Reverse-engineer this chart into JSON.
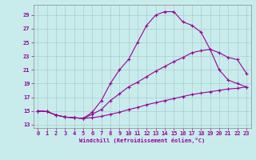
{
  "xlabel": "Windchill (Refroidissement éolien,°C)",
  "background_color": "#c8ecec",
  "line_color": "#990099",
  "xlim": [
    0,
    23
  ],
  "ylim": [
    13,
    30
  ],
  "yticks": [
    13,
    15,
    17,
    19,
    21,
    23,
    25,
    27,
    29
  ],
  "xticks": [
    0,
    1,
    2,
    3,
    4,
    5,
    6,
    7,
    8,
    9,
    10,
    11,
    12,
    13,
    14,
    15,
    16,
    17,
    18,
    19,
    20,
    21,
    22,
    23
  ],
  "curve_top_x": [
    0,
    1,
    2,
    3,
    4,
    5,
    6,
    7,
    8,
    9,
    10,
    11,
    12,
    13,
    14,
    15,
    16,
    17,
    18,
    19,
    20,
    21,
    22,
    23
  ],
  "curve_top_y": [
    15.0,
    14.9,
    14.4,
    14.1,
    14.0,
    13.9,
    14.8,
    16.5,
    19.0,
    21.0,
    22.5,
    25.0,
    27.5,
    29.0,
    29.5,
    29.5,
    28.0,
    27.5,
    26.5,
    24.0,
    21.0,
    19.5,
    19.0,
    18.5
  ],
  "curve_mid_x": [
    0,
    1,
    2,
    3,
    4,
    5,
    6,
    7,
    8,
    9,
    10,
    11,
    12,
    13,
    14,
    15,
    16,
    17,
    18,
    19,
    20,
    21,
    22,
    23
  ],
  "curve_mid_y": [
    15.0,
    14.9,
    14.4,
    14.1,
    14.0,
    13.9,
    14.5,
    15.2,
    16.5,
    17.5,
    18.5,
    19.2,
    20.0,
    20.8,
    21.5,
    22.2,
    22.8,
    23.5,
    23.8,
    24.0,
    23.5,
    22.8,
    22.5,
    20.5
  ],
  "curve_bot_x": [
    0,
    1,
    2,
    3,
    4,
    5,
    6,
    7,
    8,
    9,
    10,
    11,
    12,
    13,
    14,
    15,
    16,
    17,
    18,
    19,
    20,
    21,
    22,
    23
  ],
  "curve_bot_y": [
    15.0,
    14.9,
    14.4,
    14.1,
    14.0,
    13.9,
    14.0,
    14.2,
    14.5,
    14.8,
    15.2,
    15.5,
    15.9,
    16.2,
    16.5,
    16.8,
    17.1,
    17.4,
    17.6,
    17.8,
    18.0,
    18.2,
    18.3,
    18.5
  ],
  "marker": "+",
  "markersize": 3.5,
  "linewidth": 0.8
}
